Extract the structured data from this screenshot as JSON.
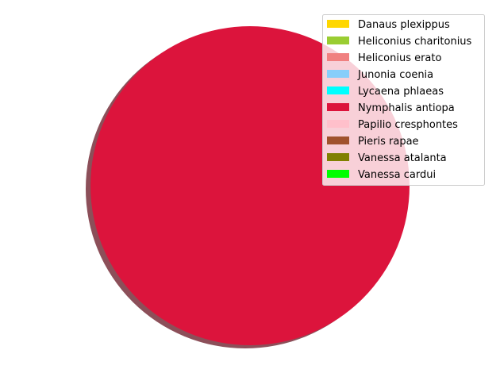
{
  "chart_data": {
    "type": "pie",
    "title": "",
    "shadow": true,
    "legend_placement": "top-right",
    "slices": [
      {
        "label": "Danaus plexippus",
        "value": 0,
        "color": "#FFD700"
      },
      {
        "label": "Heliconius charitonius",
        "value": 0,
        "color": "#9ACD32"
      },
      {
        "label": "Heliconius erato",
        "value": 0,
        "color": "#F08080"
      },
      {
        "label": "Junonia coenia",
        "value": 0,
        "color": "#87CEFA"
      },
      {
        "label": "Lycaena phlaeas",
        "value": 0,
        "color": "#00FFFF"
      },
      {
        "label": "Nymphalis antiopa",
        "value": 100,
        "color": "#DC143C"
      },
      {
        "label": "Papilio cresphontes",
        "value": 0,
        "color": "#FFC0CB"
      },
      {
        "label": "Pieris rapae",
        "value": 0,
        "color": "#A0522D"
      },
      {
        "label": "Vanessa atalanta",
        "value": 0,
        "color": "#808000"
      },
      {
        "label": "Vanessa cardui",
        "value": 0,
        "color": "#00FF00"
      }
    ]
  }
}
